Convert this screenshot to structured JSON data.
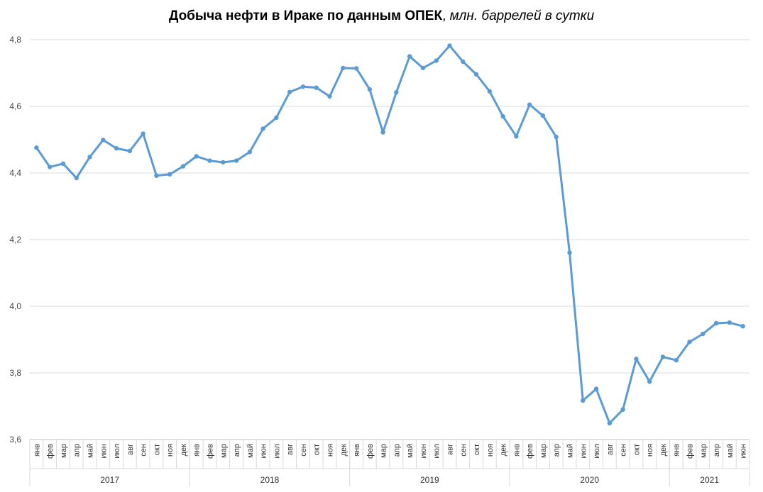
{
  "title": "Добыча нефти в Ираке по данным ОПЕК",
  "unit": "млн. баррелей в сутки",
  "chart_data": {
    "type": "line",
    "title": "Добыча нефти в Ираке по данным ОПЕК, млн. баррелей в сутки",
    "xlabel": "",
    "ylabel": "",
    "ylim": [
      3.6,
      4.8
    ],
    "yticks": [
      "3,6",
      "3,8",
      "4,0",
      "4,2",
      "4,4",
      "4,6",
      "4,8"
    ],
    "grid": true,
    "legend": "none",
    "line_color": "#5B9BD5",
    "years": [
      {
        "year": "2017",
        "months": 12
      },
      {
        "year": "2018",
        "months": 12
      },
      {
        "year": "2019",
        "months": 12
      },
      {
        "year": "2020",
        "months": 12
      },
      {
        "year": "2021",
        "months": 6
      }
    ],
    "categories": [
      "янв",
      "фев",
      "мар",
      "апр",
      "май",
      "июн",
      "июл",
      "авг",
      "сен",
      "окт",
      "ноя",
      "дек",
      "янв",
      "фев",
      "мар",
      "апр",
      "май",
      "июн",
      "июл",
      "авг",
      "сен",
      "окт",
      "ноя",
      "дек",
      "янв",
      "фев",
      "мар",
      "апр",
      "май",
      "июн",
      "июл",
      "авг",
      "сен",
      "окт",
      "ноя",
      "дек",
      "янв",
      "фев",
      "мар",
      "апр",
      "май",
      "июн",
      "июл",
      "авг",
      "сен",
      "окт",
      "ноя",
      "дек",
      "янв",
      "фев",
      "мар",
      "апр",
      "май",
      "июн"
    ],
    "series": [
      {
        "values": [
          4.476,
          4.418,
          4.428,
          4.385,
          4.448,
          4.499,
          4.474,
          4.466,
          4.518,
          4.392,
          4.396,
          4.42,
          4.45,
          4.437,
          4.432,
          4.437,
          4.463,
          4.533,
          4.566,
          4.643,
          4.659,
          4.656,
          4.63,
          4.715,
          4.714,
          4.651,
          4.522,
          4.642,
          4.75,
          4.715,
          4.737,
          4.782,
          4.734,
          4.696,
          4.645,
          4.57,
          4.51,
          4.605,
          4.572,
          4.508,
          4.161,
          3.717,
          3.752,
          3.649,
          3.69,
          3.842,
          3.774,
          3.848,
          3.838,
          3.893,
          3.917,
          3.949,
          3.951,
          3.94
        ]
      }
    ]
  }
}
